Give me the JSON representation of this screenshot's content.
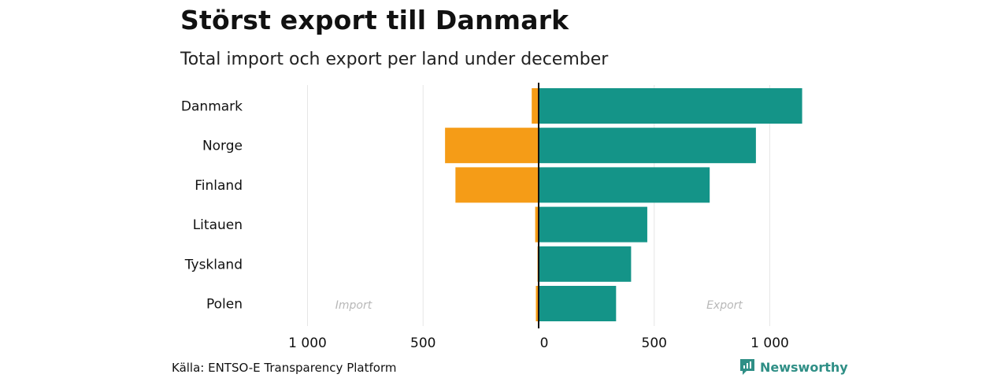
{
  "chart_data": {
    "type": "bar",
    "orientation": "horizontal-diverging",
    "title": "Störst export till Danmark",
    "subtitle": "Total import och export per land under december",
    "categories": [
      "Danmark",
      "Norge",
      "Finland",
      "Litauen",
      "Tyskland",
      "Polen"
    ],
    "series": [
      {
        "name": "Import",
        "values": [
          30,
          405,
          360,
          15,
          5,
          12
        ],
        "color": "#f59c17"
      },
      {
        "name": "Export",
        "values": [
          1140,
          940,
          740,
          470,
          400,
          335
        ],
        "color": "#149488"
      }
    ],
    "xlim": [
      -1000,
      1000
    ],
    "xticks": [
      -1000,
      -500,
      0,
      500,
      1000
    ],
    "xtick_labels": [
      "1 000",
      "500",
      "0",
      "500",
      "1 000"
    ],
    "annotations": {
      "left": "Import",
      "right": "Export"
    },
    "grid": true,
    "source": "Källa: ENTSO-E Transparency Platform"
  },
  "brand": {
    "name": "Newsworthy",
    "icon": "newsworthy-logo-icon",
    "color": "#2f8f86"
  }
}
